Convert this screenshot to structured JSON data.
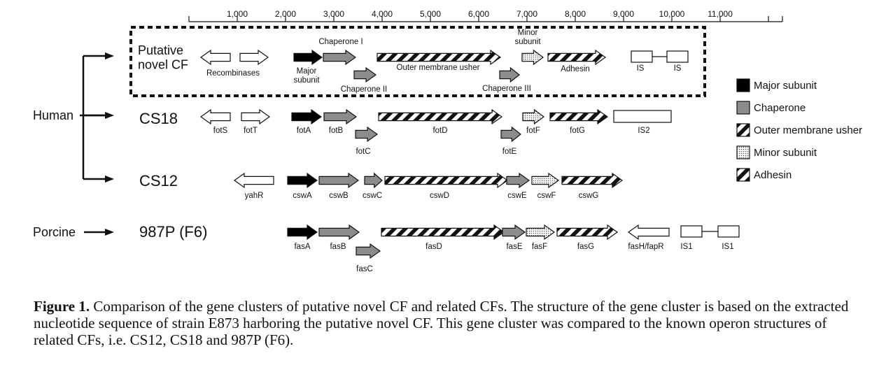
{
  "ruler": {
    "ticks": [
      "1,000",
      "2,000",
      "3,000",
      "4,000",
      "5,000",
      "6,000",
      "7,000",
      "8,000",
      "9,000",
      "10,000",
      "11,000"
    ]
  },
  "sources": {
    "human": "Human",
    "porcine": "Porcine"
  },
  "rows": [
    {
      "name": "Putative\nnovel CF",
      "genes": [
        {
          "label": "Recombinases",
          "type": "open",
          "dir": "left"
        },
        {
          "label": "",
          "type": "open",
          "dir": "right"
        },
        {
          "label": "Major\nsubunit",
          "type": "major",
          "dir": "right"
        },
        {
          "label": "Chaperone I",
          "type": "chaperone",
          "dir": "right"
        },
        {
          "label": "Chaperone II",
          "type": "chaperone",
          "dir": "right"
        },
        {
          "label": "Outer membrane usher",
          "type": "usher",
          "dir": "right"
        },
        {
          "label": "Chaperone III",
          "type": "chaperone",
          "dir": "right"
        },
        {
          "label": "Minor\nsubunit",
          "type": "minor",
          "dir": "right"
        },
        {
          "label": "Adhesin",
          "type": "adhesin",
          "dir": "right"
        },
        {
          "label": "IS",
          "type": "is",
          "dir": "none"
        },
        {
          "label": "IS",
          "type": "is",
          "dir": "none"
        }
      ]
    },
    {
      "name": "CS18",
      "genes": [
        {
          "label": "fotS",
          "type": "open",
          "dir": "left"
        },
        {
          "label": "fotT",
          "type": "open",
          "dir": "right"
        },
        {
          "label": "fotA",
          "type": "major",
          "dir": "right"
        },
        {
          "label": "fotB",
          "type": "chaperone",
          "dir": "right"
        },
        {
          "label": "fotC",
          "type": "chaperone",
          "dir": "right"
        },
        {
          "label": "fotD",
          "type": "usher",
          "dir": "right"
        },
        {
          "label": "fotE",
          "type": "chaperone",
          "dir": "right"
        },
        {
          "label": "fotF",
          "type": "minor",
          "dir": "right"
        },
        {
          "label": "fotG",
          "type": "adhesin",
          "dir": "right"
        },
        {
          "label": "IS2",
          "type": "is",
          "dir": "none"
        }
      ]
    },
    {
      "name": "CS12",
      "genes": [
        {
          "label": "yahR",
          "type": "open",
          "dir": "left"
        },
        {
          "label": "cswA",
          "type": "major",
          "dir": "right"
        },
        {
          "label": "cswB",
          "type": "chaperone",
          "dir": "right"
        },
        {
          "label": "cswC",
          "type": "chaperone",
          "dir": "right"
        },
        {
          "label": "cswD",
          "type": "usher",
          "dir": "right"
        },
        {
          "label": "cswE",
          "type": "chaperone",
          "dir": "right"
        },
        {
          "label": "cswF",
          "type": "minor",
          "dir": "right"
        },
        {
          "label": "cswG",
          "type": "adhesin",
          "dir": "right"
        }
      ]
    },
    {
      "name": "987P (F6)",
      "genes": [
        {
          "label": "fasA",
          "type": "major",
          "dir": "right"
        },
        {
          "label": "fasB",
          "type": "chaperone",
          "dir": "right"
        },
        {
          "label": "fasC",
          "type": "chaperone",
          "dir": "right"
        },
        {
          "label": "fasD",
          "type": "usher",
          "dir": "right"
        },
        {
          "label": "fasE",
          "type": "chaperone",
          "dir": "right"
        },
        {
          "label": "fasF",
          "type": "minor",
          "dir": "right"
        },
        {
          "label": "fasG",
          "type": "adhesin",
          "dir": "right"
        },
        {
          "label": "fasH/fapR",
          "type": "open",
          "dir": "left"
        },
        {
          "label": "IS1",
          "type": "is",
          "dir": "none"
        },
        {
          "label": "IS1",
          "type": "is",
          "dir": "none"
        }
      ]
    }
  ],
  "legend": [
    {
      "label": "Major subunit",
      "type": "major"
    },
    {
      "label": "Chaperone",
      "type": "chaperone"
    },
    {
      "label": "Outer membrane usher",
      "type": "usher"
    },
    {
      "label": "Minor subunit",
      "type": "minor"
    },
    {
      "label": "Adhesin",
      "type": "adhesin"
    }
  ],
  "colors": {
    "major": "#000000",
    "chaperone": "#8c8c8c",
    "open": "#ffffff",
    "stroke": "#111111"
  },
  "caption": {
    "label": "Figure 1.",
    "text": "Comparison of the gene clusters of putative novel CF and related CFs. The structure of the gene cluster is based on the extracted nucleotide sequence of strain E873 harboring the putative novel CF. This gene cluster was compared to the known operon structures of related CFs, i.e. CS12, CS18 and 987P (F6)."
  }
}
